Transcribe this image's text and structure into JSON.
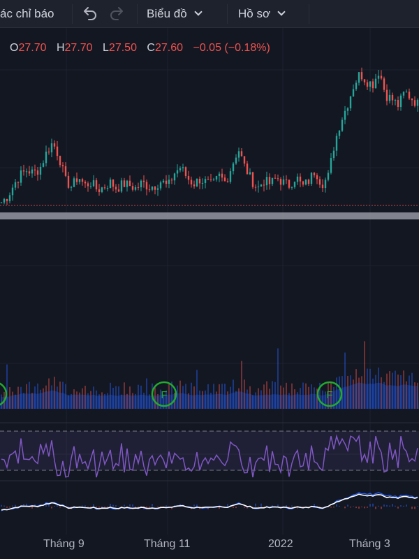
{
  "toolbar": {
    "indicators_label": "ác chỉ báo",
    "chart_menu_label": "Biểu đồ",
    "profile_menu_label": "Hồ sơ"
  },
  "ohlc": {
    "open_key": "O",
    "open": "27.70",
    "high_key": "H",
    "high": "27.70",
    "low_key": "L",
    "low": "27.50",
    "close_key": "C",
    "close": "27.60",
    "change": "−0.05 (−0.18%)"
  },
  "time_axis": [
    "Tháng 9",
    "Tháng 11",
    "2022",
    "Tháng 3"
  ],
  "markers": [
    "F",
    "F",
    "F"
  ],
  "colors": {
    "up": "#26a69a",
    "down": "#ef5350",
    "volume": "#2962ff",
    "rsi": "#7e57c2",
    "marker": "#22ab2e",
    "background": "#131722"
  },
  "icons": {
    "undo": "undo-icon",
    "redo": "redo-icon"
  },
  "chart_data": {
    "type": "line",
    "description_price": "Daily candlestick price series",
    "price_close": [
      26.2,
      26.6,
      27.4,
      28.0,
      28.3,
      28.1,
      28.4,
      29.4,
      30.1,
      29.2,
      27.6,
      27.2,
      27.9,
      27.3,
      27.5,
      27.0,
      27.2,
      27.5,
      27.1,
      27.4,
      27.3,
      27.1,
      27.5,
      27.2,
      27.3,
      27.6,
      27.2,
      28.1,
      28.5,
      27.8,
      27.4,
      27.7,
      27.5,
      27.3,
      27.9,
      27.5,
      28.6,
      29.7,
      28.5,
      27.7,
      27.1,
      27.6,
      27.4,
      27.8,
      27.5,
      27.3,
      27.9,
      27.2,
      27.6,
      28.3,
      27.4,
      27.8,
      30.0,
      31.5,
      32.5,
      33.8,
      34.6,
      34.1,
      33.9,
      34.8,
      33.2,
      32.9,
      32.5,
      33.4,
      33.0,
      32.6
    ],
    "rsi_range": [
      0,
      100
    ],
    "xlabel": "",
    "ylabel": ""
  }
}
